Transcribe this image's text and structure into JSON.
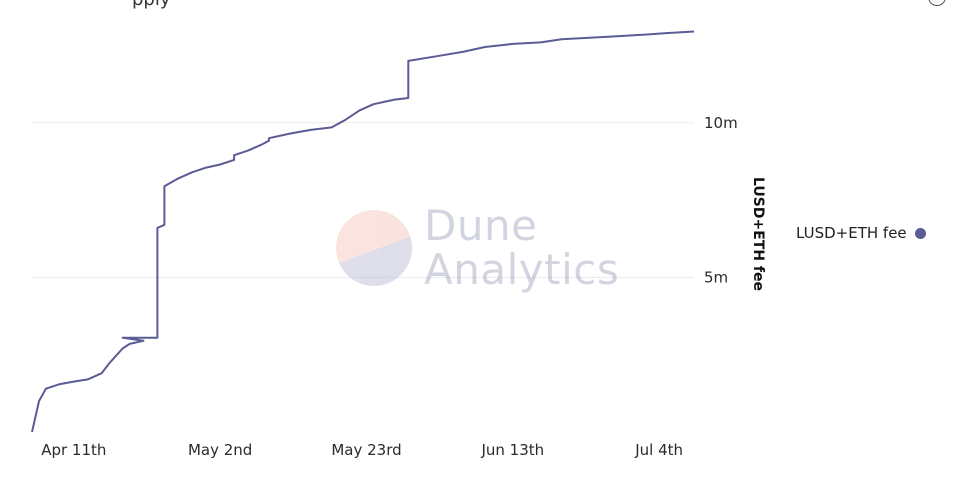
{
  "title_fragment": "pply",
  "watermark": {
    "line1": "Dune",
    "line2": "Analytics",
    "logo_top_color": "#f4b8aa",
    "logo_bottom_color": "#a9abc9"
  },
  "legend": {
    "label": "LUSD+ETH fee",
    "color": "#5b5b95"
  },
  "chart_data": {
    "type": "line",
    "ylabel": "LUSD+ETH fee",
    "y_axis_position": "right",
    "ylim": [
      0,
      13000000
    ],
    "yticks": [
      {
        "value": 5000000,
        "label": "5m"
      },
      {
        "value": 10000000,
        "label": "10m"
      }
    ],
    "xlim": [
      "2022-04-05",
      "2022-07-09"
    ],
    "xticks": [
      {
        "value": "2022-04-11",
        "label": "Apr 11th"
      },
      {
        "value": "2022-05-02",
        "label": "May 2nd"
      },
      {
        "value": "2022-05-23",
        "label": "May 23rd"
      },
      {
        "value": "2022-06-13",
        "label": "Jun 13th"
      },
      {
        "value": "2022-07-04",
        "label": "Jul 4th"
      }
    ],
    "grid": true,
    "legend_position": "right",
    "series": [
      {
        "name": "LUSD+ETH fee",
        "color": "#5b5b95",
        "x": [
          "2022-04-05",
          "2022-04-06",
          "2022-04-07",
          "2022-04-09",
          "2022-04-11",
          "2022-04-13",
          "2022-04-15",
          "2022-04-16",
          "2022-04-17",
          "2022-04-18",
          "2022-04-19",
          "2022-04-21",
          "2022-04-18",
          "2022-04-23",
          "2022-04-23",
          "2022-04-24",
          "2022-04-24",
          "2022-04-26",
          "2022-04-28",
          "2022-04-30",
          "2022-05-02",
          "2022-05-04",
          "2022-05-04",
          "2022-05-06",
          "2022-05-08",
          "2022-05-09",
          "2022-05-09",
          "2022-05-12",
          "2022-05-15",
          "2022-05-18",
          "2022-05-20",
          "2022-05-22",
          "2022-05-24",
          "2022-05-25",
          "2022-05-27",
          "2022-05-29",
          "2022-05-29",
          "2022-06-02",
          "2022-06-06",
          "2022-06-09",
          "2022-06-13",
          "2022-06-17",
          "2022-06-20",
          "2022-06-24",
          "2022-06-28",
          "2022-07-02",
          "2022-07-05",
          "2022-07-09"
        ],
        "values": [
          0,
          1000000,
          1400000,
          1550000,
          1630000,
          1700000,
          1900000,
          2200000,
          2450000,
          2700000,
          2850000,
          2950000,
          3050000,
          3050000,
          6600000,
          6700000,
          7950000,
          8200000,
          8400000,
          8550000,
          8650000,
          8800000,
          8950000,
          9100000,
          9300000,
          9420000,
          9500000,
          9650000,
          9770000,
          9850000,
          10100000,
          10400000,
          10600000,
          10650000,
          10750000,
          10800000,
          12000000,
          12150000,
          12300000,
          12450000,
          12550000,
          12600000,
          12700000,
          12750000,
          12800000,
          12850000,
          12900000,
          12950000
        ]
      }
    ]
  }
}
